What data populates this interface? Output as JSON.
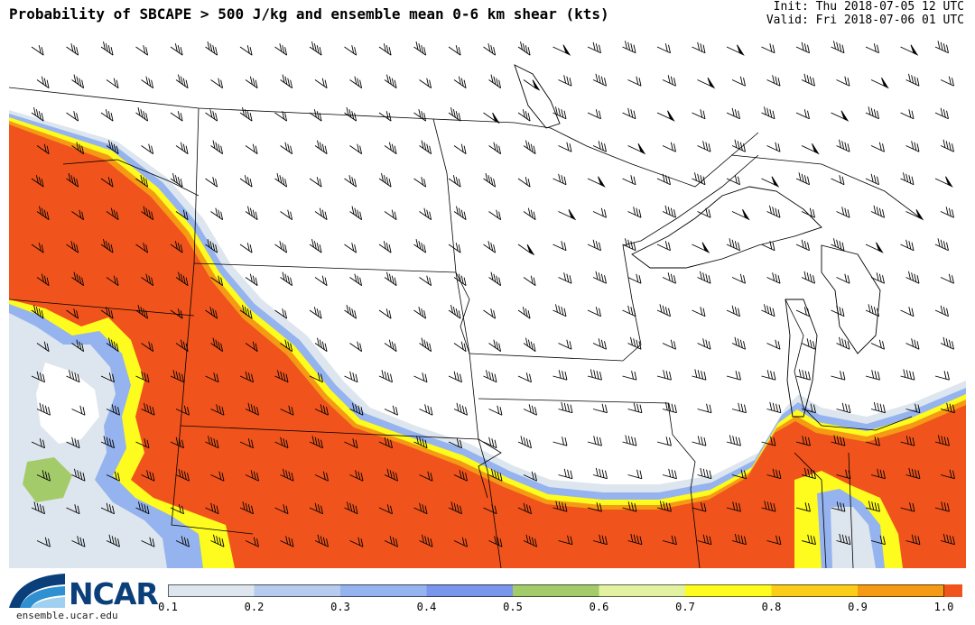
{
  "header": {
    "title": "Probability of SBCAPE > 500 J/kg and ensemble mean 0-6 km shear (kts)",
    "init": "Init: Thu 2018-07-05 12 UTC",
    "valid": "Valid: Fri 2018-07-06 01 UTC"
  },
  "logo": {
    "name": "NCAR",
    "url": "ensemble.ucar.edu"
  },
  "colorbar": {
    "ticks": [
      "0.1",
      "0.2",
      "0.3",
      "0.4",
      "0.5",
      "0.6",
      "0.7",
      "0.8",
      "0.9",
      "1.0"
    ],
    "colors": [
      "#dde6ee",
      "#b6cbee",
      "#95b3ee",
      "#7a95ec",
      "#a4cb6a",
      "#e3f2a0",
      "#fefb1e",
      "#fbcc18",
      "#f59a14",
      "#f0541c"
    ]
  },
  "map": {
    "region": "North-central United States",
    "colors": {
      "high_probability": "#f0541c",
      "orange_band": "#f59a14",
      "gold_band": "#fbcc18",
      "yellow_band": "#fefb1e",
      "blue_band": "#95b3ee",
      "light_band": "#dde6ee",
      "land": "#ffffff",
      "boundaries": "#000000"
    }
  }
}
